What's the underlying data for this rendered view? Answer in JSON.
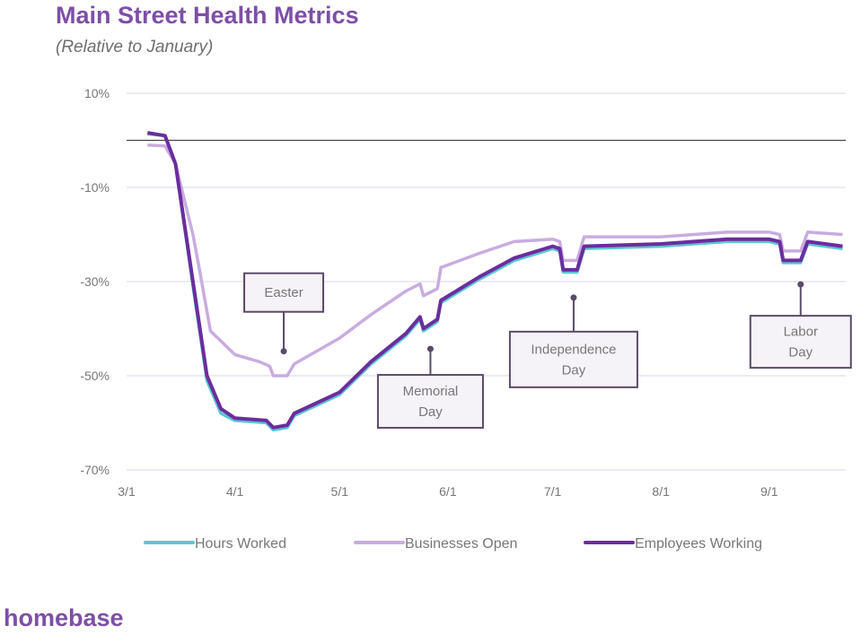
{
  "chart_data": {
    "type": "line",
    "title": "Main Street Health Metrics",
    "subtitle": "(Relative to January)",
    "ylim": [
      -70,
      10
    ],
    "yticks": [
      "10%",
      "-10%",
      "-30%",
      "-50%",
      "-70%"
    ],
    "ytick_values": [
      10,
      -10,
      -30,
      -50,
      -70
    ],
    "xticks": [
      "3/1",
      "4/1",
      "5/1",
      "6/1",
      "7/1",
      "8/1",
      "9/1"
    ],
    "xlim": [
      "3/1",
      "9/23"
    ],
    "grid": true,
    "reference_line": 0,
    "legend_position": "bottom",
    "series": [
      {
        "name": "Hours Worked",
        "color": "#5cc6d2",
        "points": [
          [
            "3/7",
            1.4
          ],
          [
            "3/12",
            1.0
          ],
          [
            "3/15",
            -5
          ],
          [
            "3/20",
            -31
          ],
          [
            "3/24",
            -51
          ],
          [
            "3/28",
            -58
          ],
          [
            "4/1",
            -59.5
          ],
          [
            "4/10",
            -60
          ],
          [
            "4/12",
            -61.5
          ],
          [
            "4/16",
            -61
          ],
          [
            "4/18",
            -58.5
          ],
          [
            "5/1",
            -54
          ],
          [
            "5/10",
            -47.5
          ],
          [
            "5/20",
            -41.5
          ],
          [
            "5/24",
            -38
          ],
          [
            "5/25",
            -40.5
          ],
          [
            "5/29",
            -38.5
          ],
          [
            "5/30",
            -34.5
          ],
          [
            "6/10",
            -29.5
          ],
          [
            "6/20",
            -25.5
          ],
          [
            "7/1",
            -23
          ],
          [
            "7/3",
            -23.5
          ],
          [
            "7/4",
            -28
          ],
          [
            "7/8",
            -28
          ],
          [
            "7/10",
            -23
          ],
          [
            "8/1",
            -22.5
          ],
          [
            "8/20",
            -21.5
          ],
          [
            "9/1",
            -21.5
          ],
          [
            "9/4",
            -22
          ],
          [
            "9/5",
            -26
          ],
          [
            "9/10",
            -26
          ],
          [
            "9/12",
            -22
          ],
          [
            "9/22",
            -23
          ]
        ]
      },
      {
        "name": "Businesses Open",
        "color": "#c9acdf",
        "points": [
          [
            "3/7",
            -1
          ],
          [
            "3/12",
            -1.2
          ],
          [
            "3/15",
            -5
          ],
          [
            "3/20",
            -20
          ],
          [
            "3/22",
            -28
          ],
          [
            "3/25",
            -40.5
          ],
          [
            "4/1",
            -45.5
          ],
          [
            "4/8",
            -47
          ],
          [
            "4/11",
            -48
          ],
          [
            "4/12",
            -50
          ],
          [
            "4/16",
            -50
          ],
          [
            "4/18",
            -47.5
          ],
          [
            "5/1",
            -42
          ],
          [
            "5/10",
            -37
          ],
          [
            "5/20",
            -32
          ],
          [
            "5/24",
            -30.5
          ],
          [
            "5/25",
            -33
          ],
          [
            "5/29",
            -31.5
          ],
          [
            "5/30",
            -27
          ],
          [
            "6/10",
            -24
          ],
          [
            "6/20",
            -21.5
          ],
          [
            "7/1",
            -21
          ],
          [
            "7/3",
            -21.5
          ],
          [
            "7/4",
            -25.5
          ],
          [
            "7/8",
            -25.5
          ],
          [
            "7/10",
            -20.5
          ],
          [
            "8/1",
            -20.5
          ],
          [
            "8/20",
            -19.5
          ],
          [
            "9/1",
            -19.5
          ],
          [
            "9/4",
            -20
          ],
          [
            "9/5",
            -23.5
          ],
          [
            "9/10",
            -23.5
          ],
          [
            "9/12",
            -19.5
          ],
          [
            "9/22",
            -20
          ]
        ]
      },
      {
        "name": "Employees Working",
        "color": "#6b2d9e",
        "points": [
          [
            "3/7",
            1.6
          ],
          [
            "3/12",
            1.0
          ],
          [
            "3/15",
            -5
          ],
          [
            "3/20",
            -30
          ],
          [
            "3/24",
            -50
          ],
          [
            "3/28",
            -57
          ],
          [
            "4/1",
            -59
          ],
          [
            "4/10",
            -59.5
          ],
          [
            "4/12",
            -61
          ],
          [
            "4/16",
            -60.5
          ],
          [
            "4/18",
            -58
          ],
          [
            "5/1",
            -53.5
          ],
          [
            "5/10",
            -47
          ],
          [
            "5/20",
            -41
          ],
          [
            "5/24",
            -37.5
          ],
          [
            "5/25",
            -40
          ],
          [
            "5/29",
            -38
          ],
          [
            "5/30",
            -34
          ],
          [
            "6/10",
            -29
          ],
          [
            "6/20",
            -25
          ],
          [
            "7/1",
            -22.5
          ],
          [
            "7/3",
            -23
          ],
          [
            "7/4",
            -27.5
          ],
          [
            "7/8",
            -27.5
          ],
          [
            "7/10",
            -22.5
          ],
          [
            "8/1",
            -22
          ],
          [
            "8/20",
            -21
          ],
          [
            "9/1",
            -21
          ],
          [
            "9/4",
            -21.5
          ],
          [
            "9/5",
            -25.5
          ],
          [
            "9/10",
            -25.5
          ],
          [
            "9/12",
            -21.5
          ],
          [
            "9/22",
            -22.5
          ]
        ]
      }
    ],
    "annotations": [
      {
        "label": [
          "Easter"
        ],
        "date": "4/15",
        "value": -44.8
      },
      {
        "label": [
          "Memorial",
          "Day"
        ],
        "date": "5/27",
        "value": -44.3
      },
      {
        "label": [
          "Independence",
          "Day"
        ],
        "date": "7/7",
        "value": -33.4
      },
      {
        "label": [
          "Labor",
          "Day"
        ],
        "date": "9/10",
        "value": -30.6
      }
    ]
  },
  "brand": {
    "logo_text": "homebase",
    "color": "#7d4fa6"
  }
}
